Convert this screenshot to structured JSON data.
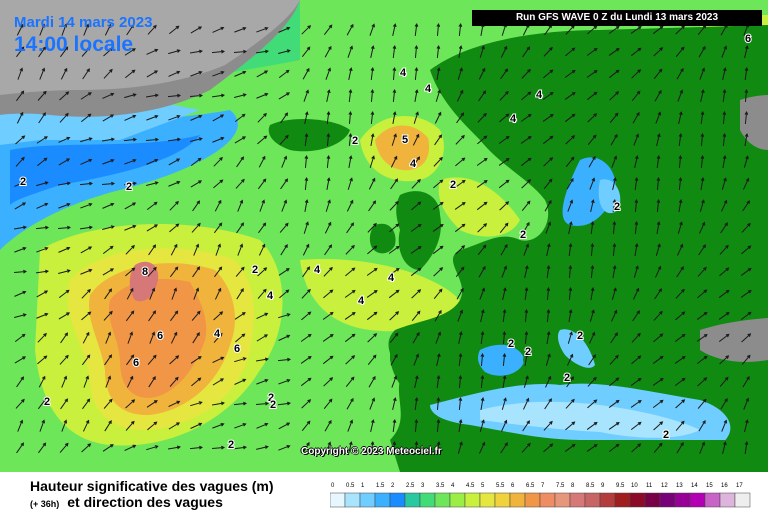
{
  "header": {
    "date": "Mardi 14 mars 2023",
    "time": "14:00 locale",
    "run": "Run GFS WAVE 0 Z du Lundi 13 mars 2023"
  },
  "copyright": "Copyright © 2023 Meteociel.fr",
  "legend": {
    "title_line1": "Hauteur significative des vagues (m)",
    "lead_time": "(+ 36h)",
    "title_line2": "et direction des vagues",
    "scale_values": [
      "0",
      "0.5",
      "1",
      "1.5",
      "2",
      "2.5",
      "3",
      "3.5",
      "4",
      "4.5",
      "5",
      "5.5",
      "6",
      "6.5",
      "7",
      "7.5",
      "8",
      "8.5",
      "9",
      "9.5",
      "10",
      "11",
      "12",
      "13",
      "14",
      "15",
      "16",
      "17"
    ],
    "scale_colors": [
      "#e6f7ff",
      "#a9e4ff",
      "#6fcdff",
      "#3ab0ff",
      "#1b8cff",
      "#28c8a0",
      "#41dc78",
      "#6ee65a",
      "#9bee46",
      "#c8f03c",
      "#e6e640",
      "#f0d23c",
      "#f0b43c",
      "#f09646",
      "#f08c64",
      "#e6967a",
      "#d67878",
      "#c86464",
      "#b43c3c",
      "#a01e1e",
      "#8c0a28",
      "#780046",
      "#780078",
      "#960096",
      "#b400b4",
      "#c864c8",
      "#dcb4dc",
      "#eeeeee"
    ]
  },
  "contour_labels": [
    "6",
    "4",
    "4",
    "4",
    "4",
    "5",
    "4",
    "2",
    "2",
    "2",
    "4",
    "2",
    "2",
    "2",
    "8",
    "4",
    "4",
    "4",
    "4",
    "6",
    "6",
    "6",
    "2",
    "2",
    "2",
    "2",
    "2",
    "2",
    "2",
    "2",
    "2",
    "2"
  ],
  "colors": {
    "land": "#118a11",
    "grey_land": "#8c8c8c",
    "sea_light": "#6fcdff",
    "sea_mid": "#6ee65a",
    "sea_high": "#f09646",
    "sea_max": "#c86464"
  }
}
